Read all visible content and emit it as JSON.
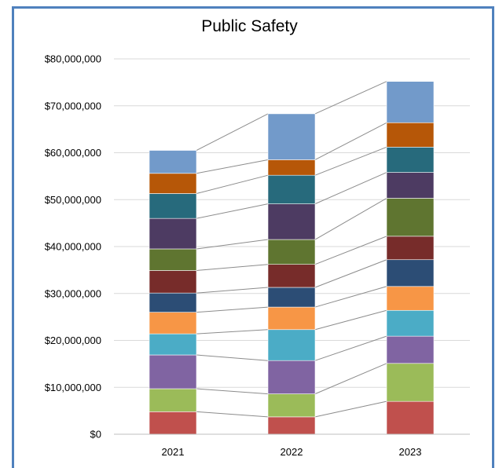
{
  "chart_data": {
    "type": "bar",
    "stacked": true,
    "title": "Public Safety",
    "xlabel": "",
    "ylabel": "",
    "categories": [
      "2021",
      "2022",
      "2023"
    ],
    "ylim": [
      0,
      80000000
    ],
    "yticks": [
      0,
      10000000,
      20000000,
      30000000,
      40000000,
      50000000,
      60000000,
      70000000,
      80000000
    ],
    "ytick_labels": [
      "$0",
      "$10,000,000",
      "$20,000,000",
      "$30,000,000",
      "$40,000,000",
      "$50,000,000",
      "$60,000,000",
      "$70,000,000",
      "$80,000,000"
    ],
    "grid": true,
    "series_lines": true,
    "series": [
      {
        "color": "#c0504d",
        "values": [
          4800000,
          3700000,
          7000000
        ]
      },
      {
        "color": "#9bbb59",
        "values": [
          4900000,
          4900000,
          8100000
        ]
      },
      {
        "color": "#8064a2",
        "values": [
          7200000,
          7100000,
          5800000
        ]
      },
      {
        "color": "#4bacc6",
        "values": [
          4500000,
          6600000,
          5500000
        ]
      },
      {
        "color": "#f79646",
        "values": [
          4600000,
          4800000,
          5100000
        ]
      },
      {
        "color": "#2c4d75",
        "values": [
          4100000,
          4200000,
          5700000
        ]
      },
      {
        "color": "#772c2a",
        "values": [
          4800000,
          4900000,
          5000000
        ]
      },
      {
        "color": "#5f7530",
        "values": [
          4600000,
          5300000,
          8100000
        ]
      },
      {
        "color": "#4d3b62",
        "values": [
          6500000,
          7600000,
          5500000
        ]
      },
      {
        "color": "#276a7c",
        "values": [
          5300000,
          6100000,
          5400000
        ]
      },
      {
        "color": "#b65708",
        "values": [
          4300000,
          3300000,
          5200000
        ]
      },
      {
        "color": "#729aca",
        "values": [
          4900000,
          9800000,
          8800000
        ]
      }
    ]
  }
}
